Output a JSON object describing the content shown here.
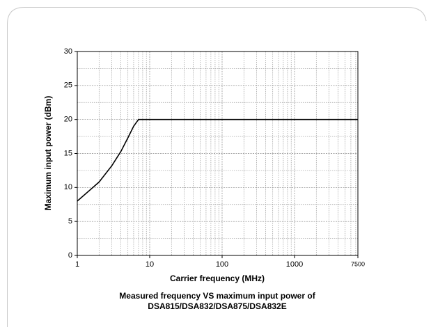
{
  "chart_data": {
    "type": "line",
    "xlabel": "Carrier frequency (MHz)",
    "ylabel": "Maximum input power (dBm)",
    "caption": [
      "Measured frequency VS maximum input power of",
      "DSA815/DSA832/DSA875/DSA832E"
    ],
    "x": [
      1,
      2,
      3,
      4,
      5,
      6,
      7,
      7500
    ],
    "series": [
      {
        "name": "Maximum input power",
        "color": "#000000",
        "values": [
          8,
          10.8,
          13.2,
          15.3,
          17.3,
          19,
          20,
          20
        ]
      }
    ],
    "xlim": [
      1,
      7500
    ],
    "xticks": [
      1,
      10,
      100,
      1000,
      7500
    ],
    "xscale": "log",
    "ylim": [
      0,
      30
    ],
    "yticks": [
      0,
      5,
      10,
      15,
      20,
      25,
      30
    ],
    "grid": true,
    "minor_grid": true
  }
}
